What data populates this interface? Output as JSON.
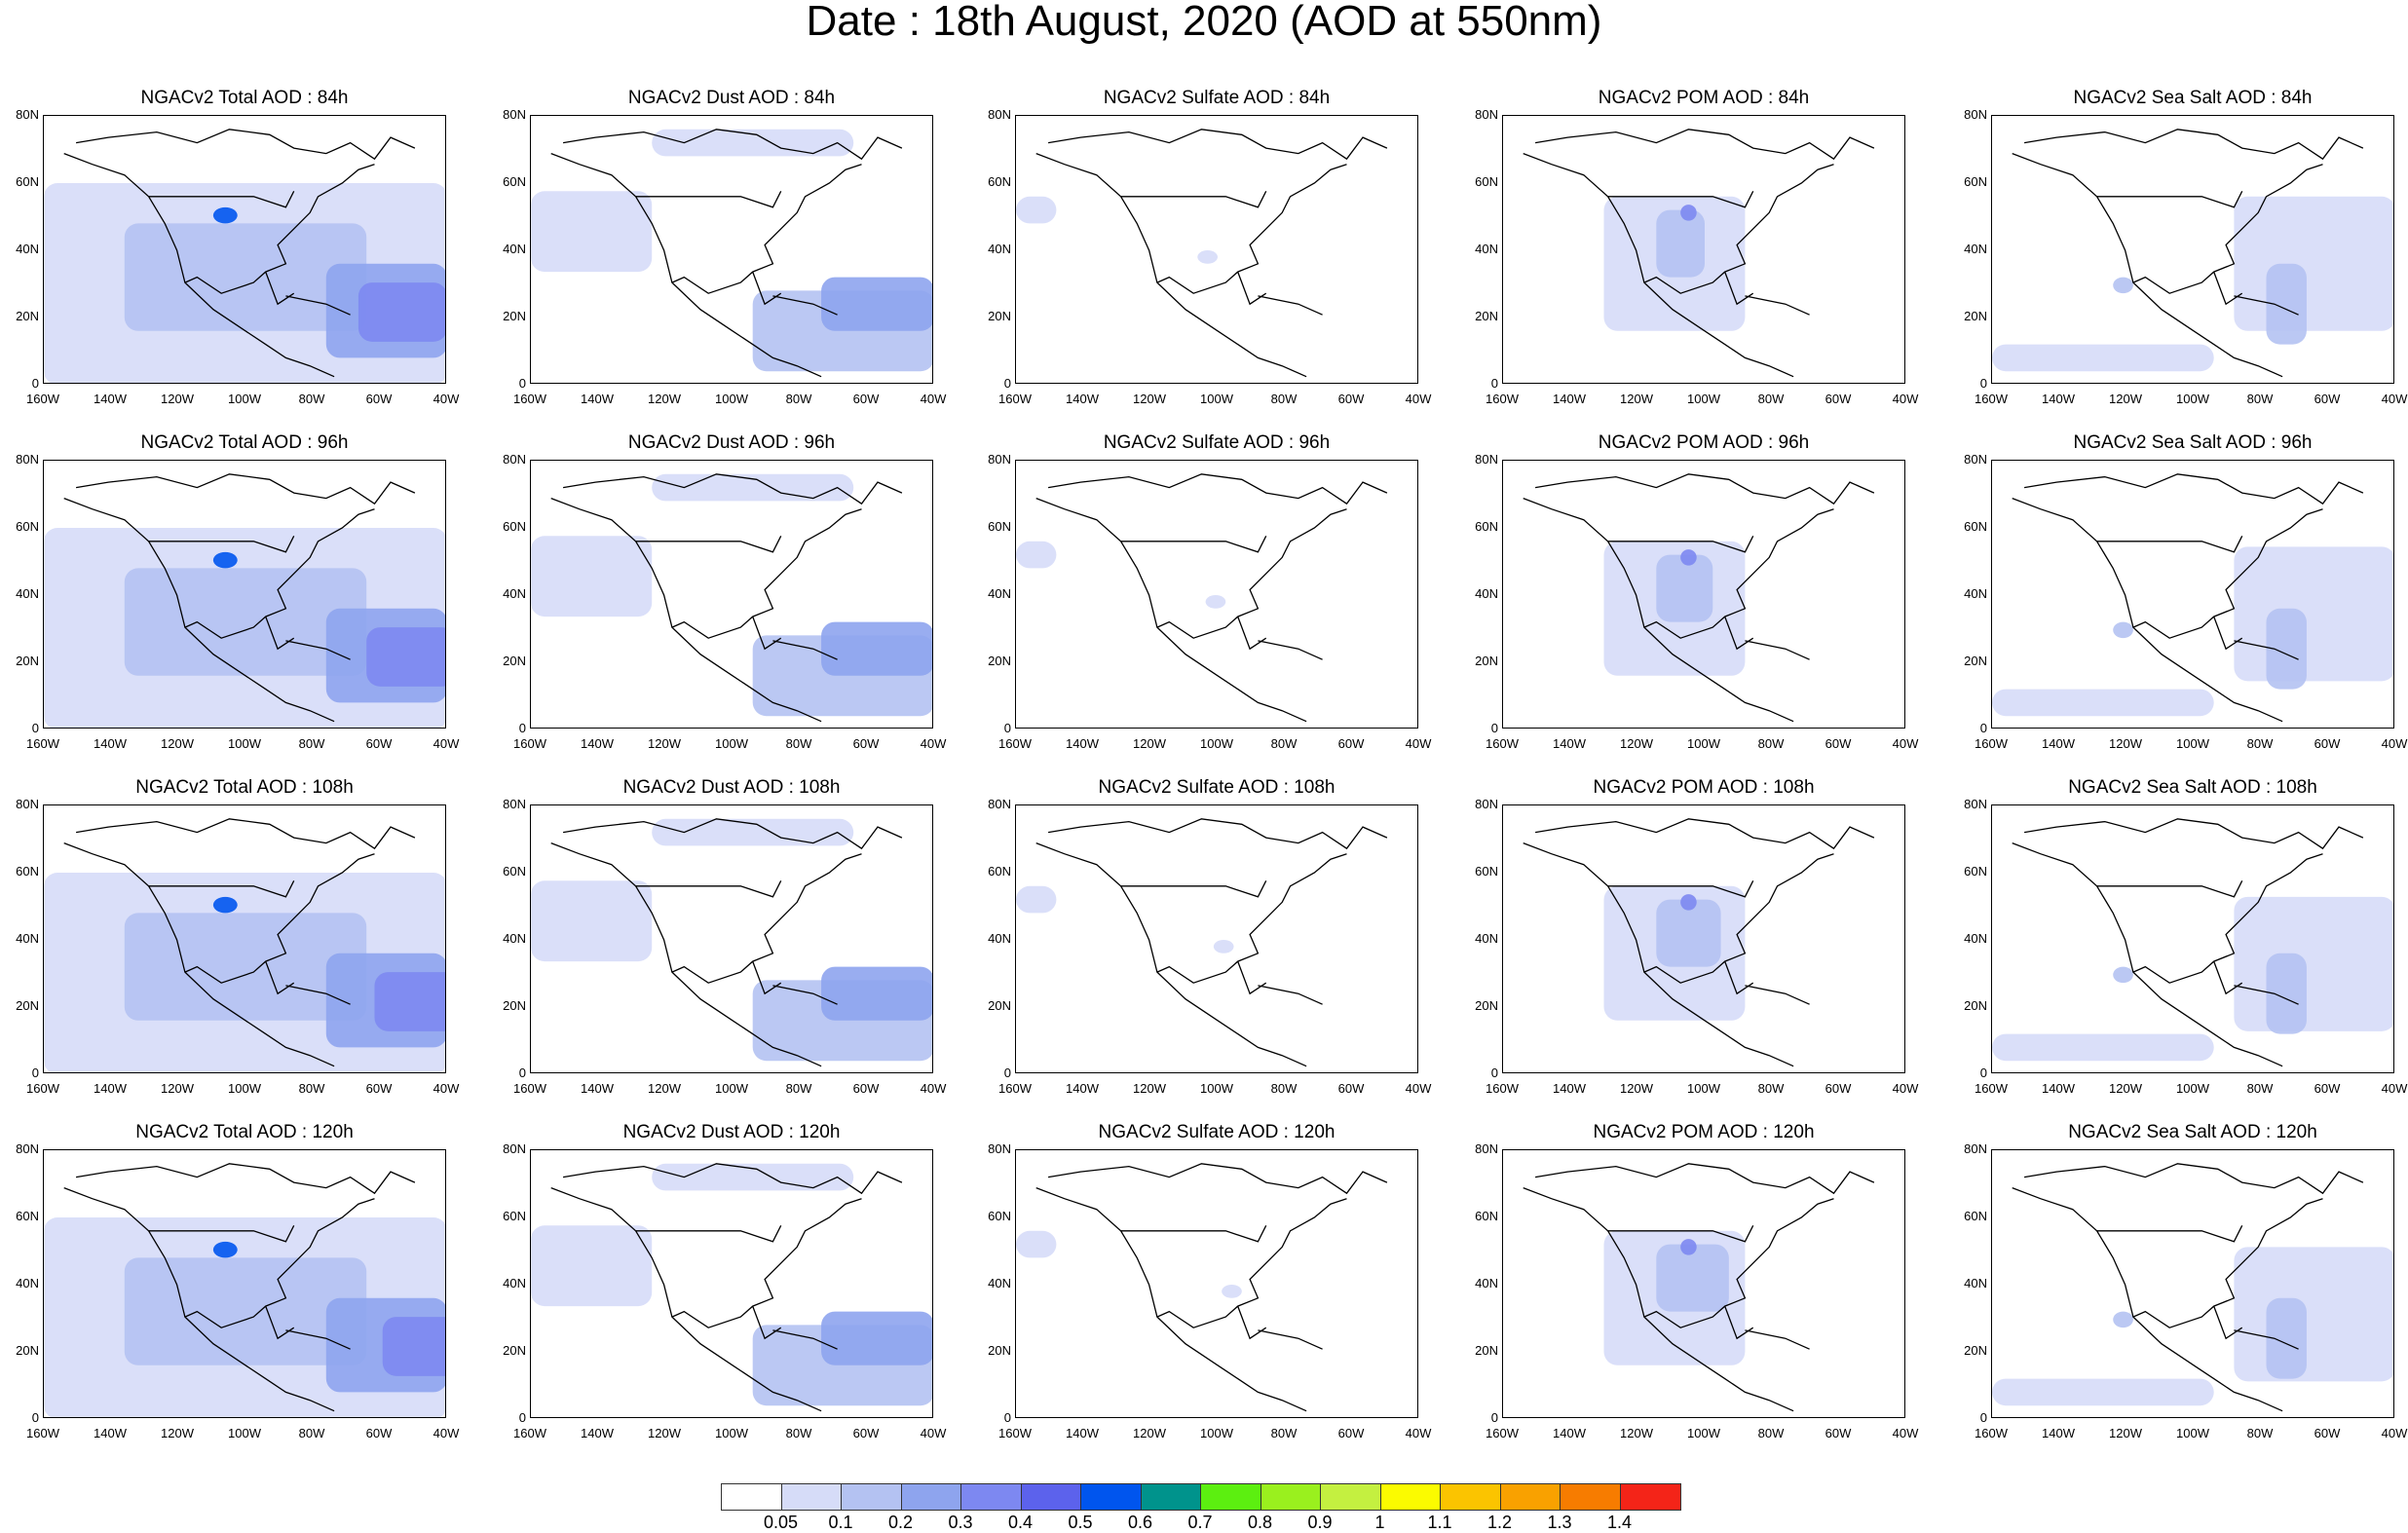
{
  "title": "Date : 18th August, 2020 (AOD at 550nm)",
  "y_axis_labels": [
    "80N",
    "60N",
    "40N",
    "20N",
    "0"
  ],
  "x_axis_labels": [
    "160W",
    "140W",
    "120W",
    "100W",
    "80W",
    "60W",
    "40W"
  ],
  "panels": [
    [
      "NGACv2 Total AOD : 84h",
      "NGACv2 Dust AOD : 84h",
      "NGACv2 Sulfate AOD : 84h",
      "NGACv2 POM AOD : 84h",
      "NGACv2 Sea Salt AOD : 84h"
    ],
    [
      "NGACv2 Total AOD : 96h",
      "NGACv2 Dust AOD : 96h",
      "NGACv2 Sulfate AOD : 96h",
      "NGACv2 POM AOD : 96h",
      "NGACv2 Sea Salt AOD : 96h"
    ],
    [
      "NGACv2 Total AOD : 108h",
      "NGACv2 Dust AOD : 108h",
      "NGACv2 Sulfate AOD : 108h",
      "NGACv2 POM AOD : 108h",
      "NGACv2 Sea Salt AOD : 108h"
    ],
    [
      "NGACv2 Total AOD : 120h",
      "NGACv2 Dust AOD : 120h",
      "NGACv2 Sulfate AOD : 120h",
      "NGACv2 POM AOD : 120h",
      "NGACv2 Sea Salt  AOD : 120h"
    ]
  ],
  "colorbar": {
    "colors": [
      "#ffffff",
      "#d6dcf8",
      "#b4c2f2",
      "#8ea4ee",
      "#7d88f1",
      "#5c62ec",
      "#0055ee",
      "#00938c",
      "#5cef10",
      "#9af01e",
      "#c4f040",
      "#fbfb00",
      "#fbc400",
      "#f9a100",
      "#f77c00",
      "#f42418"
    ],
    "labels": [
      "0.05",
      "0.1",
      "0.2",
      "0.3",
      "0.4",
      "0.5",
      "0.6",
      "0.7",
      "0.8",
      "0.9",
      "1",
      "1.1",
      "1.2",
      "1.3",
      "1.4"
    ]
  }
}
